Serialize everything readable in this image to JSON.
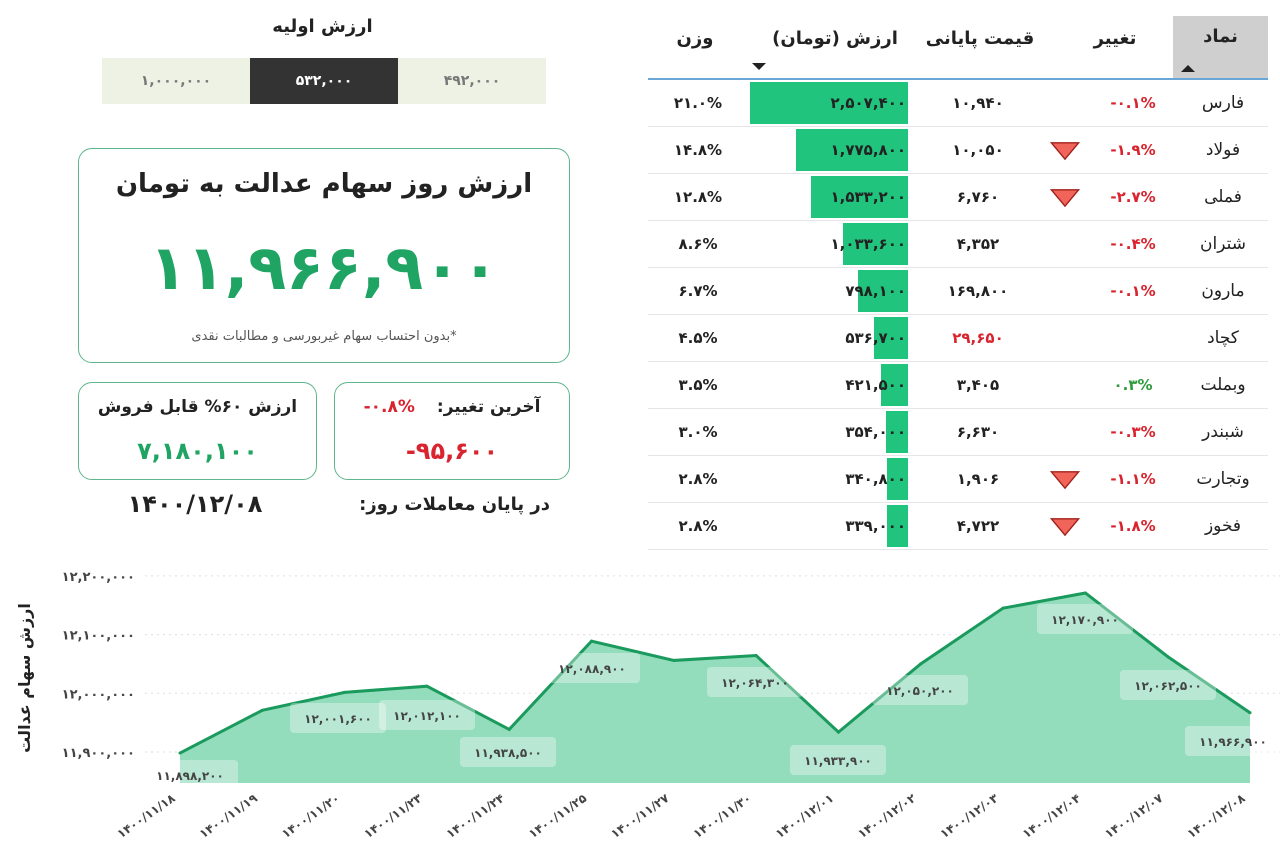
{
  "initial_value": {
    "title": "ارزش اولیه",
    "options": [
      "۱,۰۰۰,۰۰۰",
      "۵۳۲,۰۰۰",
      "۴۹۲,۰۰۰"
    ],
    "selected": "۵۳۲,۰۰۰"
  },
  "main_card": {
    "title": "ارزش روز سهام عدالت به تومان",
    "value": "۱۱,۹۶۶,۹۰۰",
    "note": "*بدون احتساب سهام غیربورسی و مطالبات نقدی"
  },
  "sellable_card": {
    "label": "ارزش ۶۰% قابل فروش",
    "value": "۷,۱۸۰,۱۰۰"
  },
  "change_card": {
    "label": "آخرین تغییر:",
    "percent": "-۰.۸%",
    "value": "-۹۵,۶۰۰"
  },
  "date": {
    "label": "در پایان معاملات روز:",
    "value": "۱۴۰۰/۱۲/۰۸"
  },
  "colors": {
    "accent": "#1fa463",
    "bar": "#20c47c",
    "negative": "#d9232e",
    "positive": "#2e9a3e",
    "arrow": "#f0645a"
  },
  "table": {
    "headers": {
      "symbol": "نماد",
      "change": "تغییر",
      "close": "قیمت پایانی",
      "value": "ارزش (تومان)",
      "weight": "وزن"
    },
    "sort": {
      "symbol": "asc-arrow-icon",
      "value": "desc-arrow-icon"
    },
    "rows": [
      {
        "symbol": "فارس",
        "change": "-۰.۱%",
        "dir": "neg",
        "arrow": false,
        "close": "۱۰,۹۴۰",
        "close_red": false,
        "value": "۲,۵۰۷,۴۰۰",
        "amount": 2507400,
        "weight": "۲۱.۰%"
      },
      {
        "symbol": "فولاد",
        "change": "-۱.۹%",
        "dir": "neg",
        "arrow": true,
        "close": "۱۰,۰۵۰",
        "close_red": false,
        "value": "۱,۷۷۵,۸۰۰",
        "amount": 1775800,
        "weight": "۱۴.۸%"
      },
      {
        "symbol": "فملی",
        "change": "-۲.۷%",
        "dir": "neg",
        "arrow": true,
        "close": "۶,۷۶۰",
        "close_red": false,
        "value": "۱,۵۳۳,۲۰۰",
        "amount": 1533200,
        "weight": "۱۲.۸%"
      },
      {
        "symbol": "شتران",
        "change": "-۰.۴%",
        "dir": "neg",
        "arrow": false,
        "close": "۴,۳۵۲",
        "close_red": false,
        "value": "۱,۰۳۳,۶۰۰",
        "amount": 1033600,
        "weight": "۸.۶%"
      },
      {
        "symbol": "مارون",
        "change": "-۰.۱%",
        "dir": "neg",
        "arrow": false,
        "close": "۱۶۹,۸۰۰",
        "close_red": false,
        "value": "۷۹۸,۱۰۰",
        "amount": 798100,
        "weight": "۶.۷%"
      },
      {
        "symbol": "کچاد",
        "change": "",
        "dir": "neg",
        "arrow": false,
        "close": "۲۹,۶۵۰",
        "close_red": true,
        "value": "۵۳۶,۷۰۰",
        "amount": 536700,
        "weight": "۴.۵%"
      },
      {
        "symbol": "وبملت",
        "change": "۰.۳%",
        "dir": "pos",
        "arrow": false,
        "close": "۳,۴۰۵",
        "close_red": false,
        "value": "۴۲۱,۵۰۰",
        "amount": 421500,
        "weight": "۳.۵%"
      },
      {
        "symbol": "شبندر",
        "change": "-۰.۳%",
        "dir": "neg",
        "arrow": false,
        "close": "۶,۶۳۰",
        "close_red": false,
        "value": "۳۵۴,۰۰۰",
        "amount": 354000,
        "weight": "۳.۰%"
      },
      {
        "symbol": "وتجارت",
        "change": "-۱.۱%",
        "dir": "neg",
        "arrow": true,
        "close": "۱,۹۰۶",
        "close_red": false,
        "value": "۳۴۰,۸۰۰",
        "amount": 340800,
        "weight": "۲.۸%"
      },
      {
        "symbol": "فخوز",
        "change": "-۱.۸%",
        "dir": "neg",
        "arrow": true,
        "close": "۴,۷۲۲",
        "close_red": false,
        "value": "۳۳۹,۰۰۰",
        "amount": 339000,
        "weight": "۲.۸%"
      }
    ]
  },
  "chart_data": {
    "type": "area",
    "ylabel": "ارزش سهام عدالت",
    "ylim": [
      11900000,
      12200000
    ],
    "yticks": [
      11900000,
      12000000,
      12100000,
      12200000
    ],
    "ytick_labels": [
      "۱۱,۹۰۰,۰۰۰",
      "۱۲,۰۰۰,۰۰۰",
      "۱۲,۱۰۰,۰۰۰",
      "۱۲,۲۰۰,۰۰۰"
    ],
    "grid": true,
    "x": [
      "۱۴۰۰/۱۱/۱۸",
      "۱۴۰۰/۱۱/۱۹",
      "۱۴۰۰/۱۱/۲۰",
      "۱۴۰۰/۱۱/۲۳",
      "۱۴۰۰/۱۱/۲۴",
      "۱۴۰۰/۱۱/۲۵",
      "۱۴۰۰/۱۱/۲۷",
      "۱۴۰۰/۱۱/۳۰",
      "۱۴۰۰/۱۲/۰۱",
      "۱۴۰۰/۱۲/۰۲",
      "۱۴۰۰/۱۲/۰۳",
      "۱۴۰۰/۱۲/۰۴",
      "۱۴۰۰/۱۲/۰۷",
      "۱۴۰۰/۱۲/۰۸"
    ],
    "values": [
      11898200,
      11971000,
      12001600,
      12012100,
      11938500,
      12088900,
      12056000,
      12064300,
      11933900,
      12050200,
      12145000,
      12170900,
      12062500,
      11966900
    ],
    "data_labels": [
      "۱۱,۸۹۸,۲۰۰",
      "",
      "۱۲,۰۰۱,۶۰۰",
      "۱۲,۰۱۲,۱۰۰",
      "۱۱,۹۳۸,۵۰۰",
      "۱۲,۰۸۸,۹۰۰",
      "",
      "۱۲,۰۶۴,۳۰۰",
      "۱۱,۹۳۳,۹۰۰",
      "۱۲,۰۵۰,۲۰۰",
      "",
      "۱۲,۱۷۰,۹۰۰",
      "۱۲,۰۶۲,۵۰۰",
      "۱۱,۹۶۶,۹۰۰"
    ],
    "line_color": "#1a9a5c",
    "fill_color": "#93dcbc"
  }
}
